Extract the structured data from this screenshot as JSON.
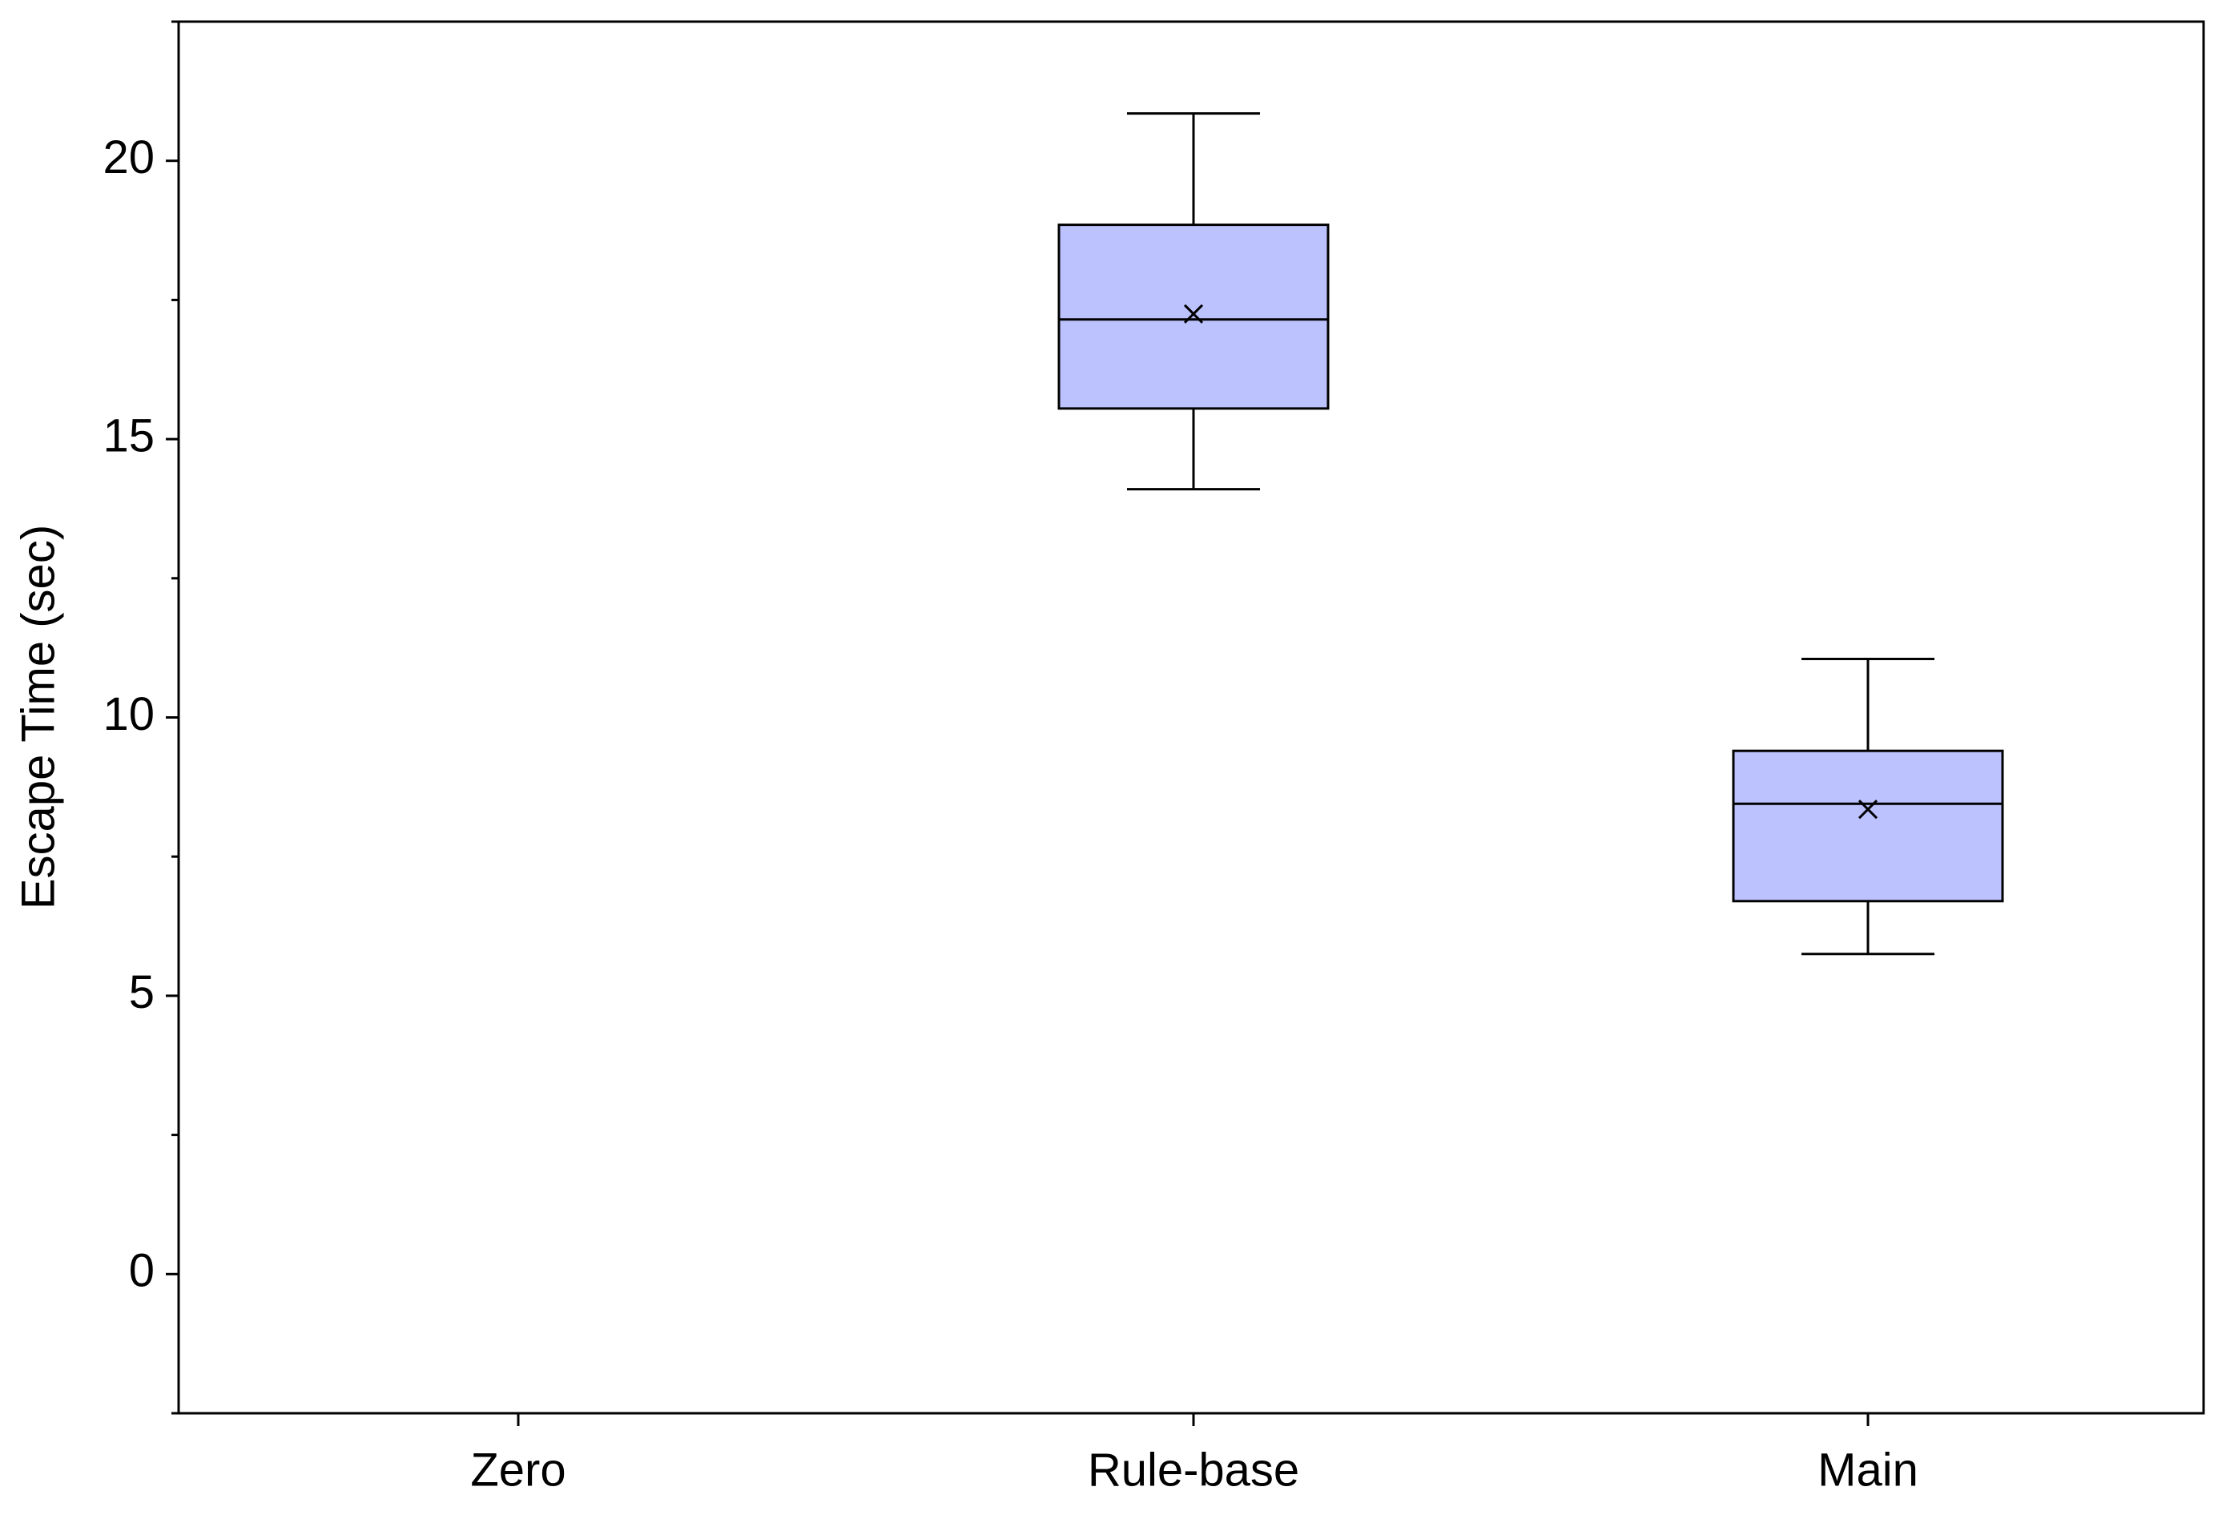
{
  "chart_data": {
    "type": "box",
    "y_label": "Escape Time (sec)",
    "categories": [
      "Zero",
      "Rule-base",
      "Main"
    ],
    "min": [
      null,
      14.1,
      5.75
    ],
    "q1": [
      null,
      15.55,
      6.7
    ],
    "median": [
      null,
      17.15,
      8.45
    ],
    "q3": [
      null,
      18.85,
      9.4
    ],
    "max": [
      null,
      20.85,
      11.05
    ],
    "mean": [
      null,
      17.25,
      8.35
    ],
    "color": "#bbc2fe",
    "ylim": [
      -2.5,
      22.5
    ],
    "yticks": [
      0,
      5,
      10,
      15,
      20
    ],
    "yminorticks": [
      -2.5,
      2.5,
      7.5,
      12.5,
      17.5,
      22.5
    ]
  }
}
